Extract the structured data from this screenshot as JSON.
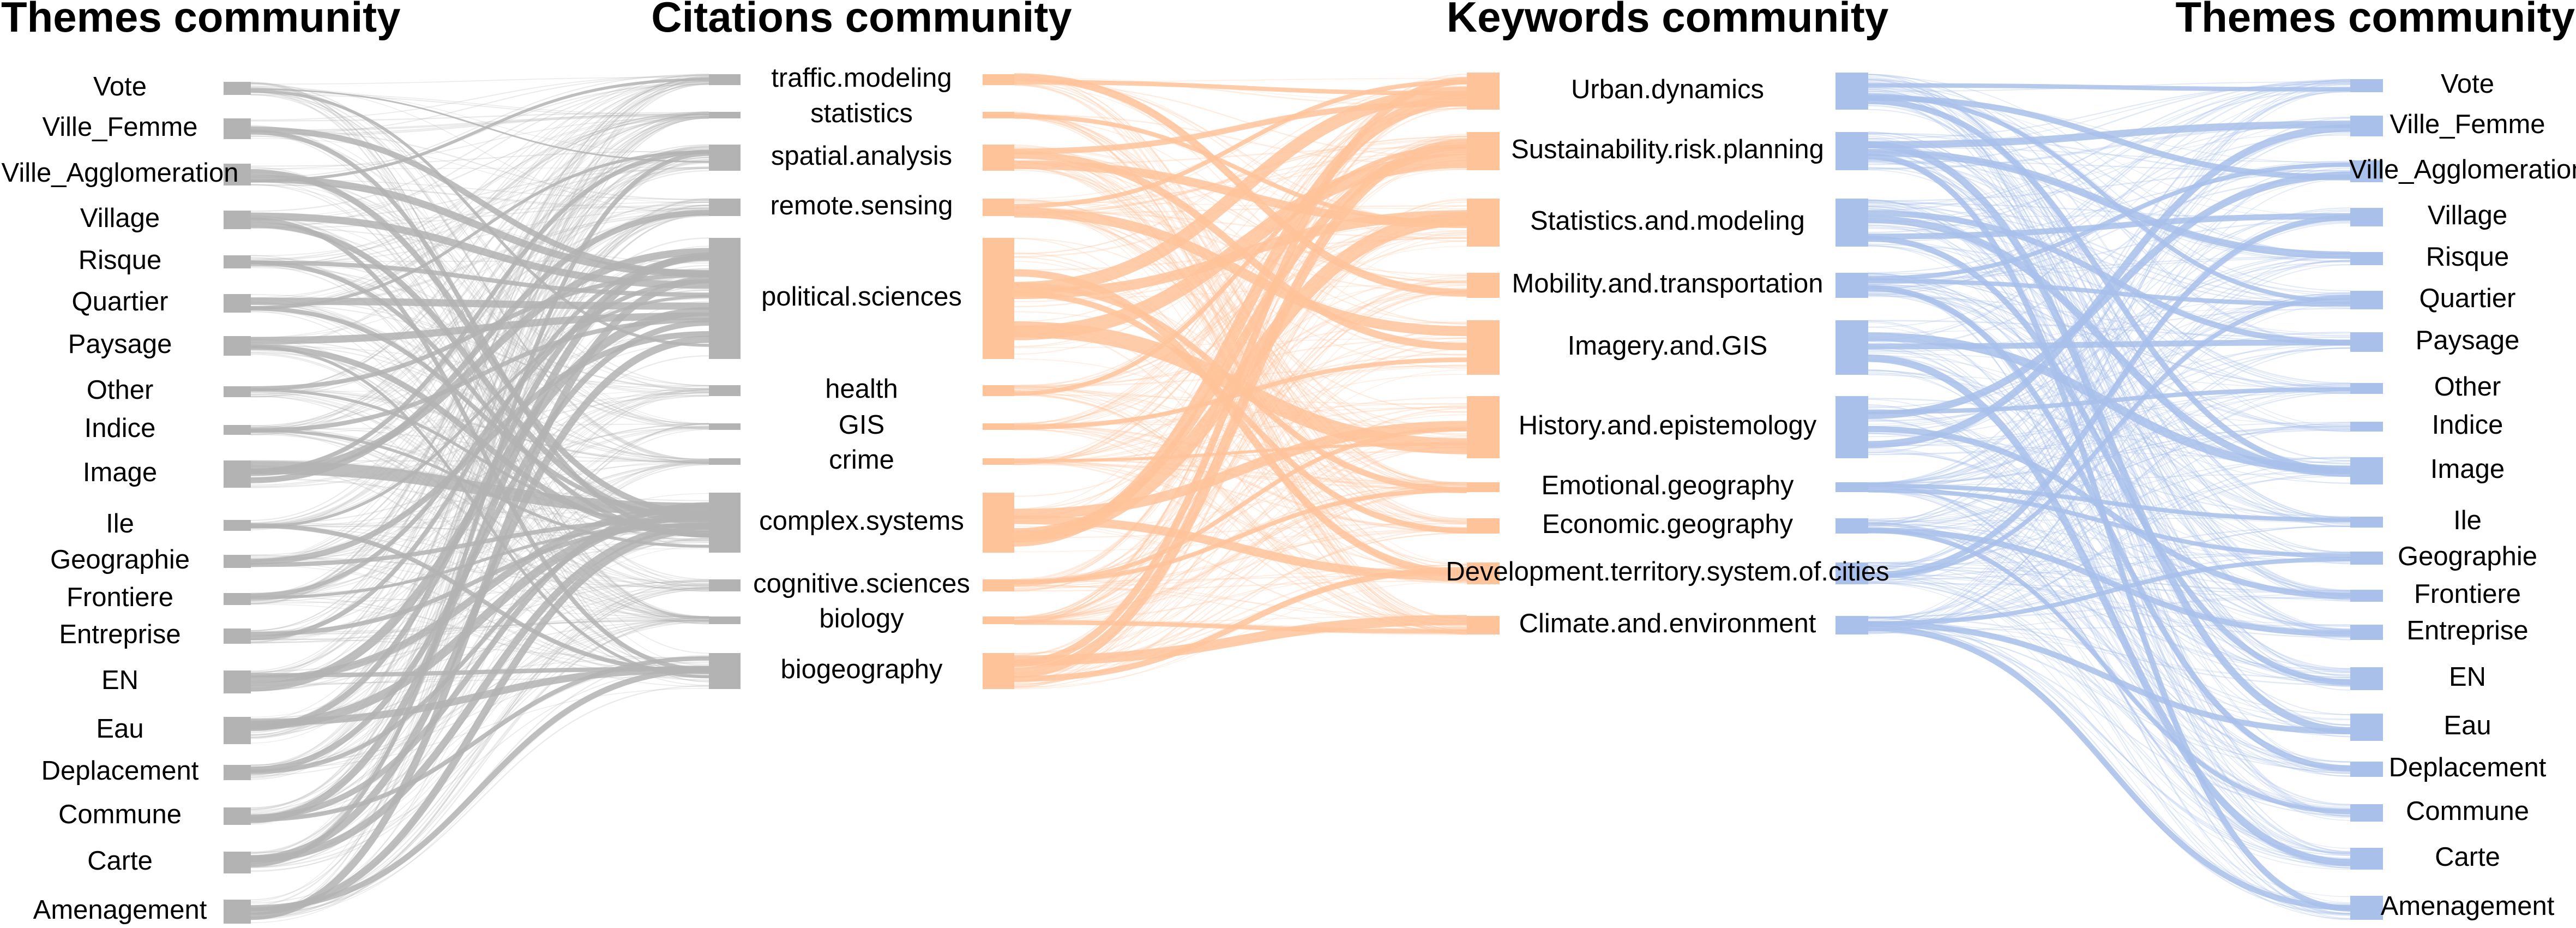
{
  "titles": {
    "themes_left": "Themes community",
    "citations": "Citations community",
    "keywords": "Keywords community",
    "themes_right": "Themes community"
  },
  "themes": [
    "Vote",
    "Ville_Femme",
    "Ville_Agglomeration",
    "Village",
    "Risque",
    "Quartier",
    "Paysage",
    "Other",
    "Indice",
    "Image",
    "Ile",
    "Geographie",
    "Frontiere",
    "Entreprise",
    "EN",
    "Eau",
    "Deplacement",
    "Commune",
    "Carte",
    "Amenagement"
  ],
  "citations": [
    "traffic.modeling",
    "statistics",
    "spatial.analysis",
    "remote.sensing",
    "political.sciences",
    "health",
    "GIS",
    "crime",
    "complex.systems",
    "cognitive.sciences",
    "biology",
    "biogeography"
  ],
  "keywords": [
    "Urban.dynamics",
    "Sustainability.risk.planning",
    "Statistics.and.modeling",
    "Mobility.and.transportation",
    "Imagery.and.GIS",
    "History.and.epistemology",
    "Emotional.geography",
    "Economic.geography",
    "Development.territory.system.of.cities",
    "Climate.and.environment"
  ],
  "colors": {
    "themes_to_citations": "#b3b3b3",
    "citations_to_keywords": "#ffc39a",
    "keywords_to_themes": "#a8c0ea",
    "text": "#000000"
  }
}
